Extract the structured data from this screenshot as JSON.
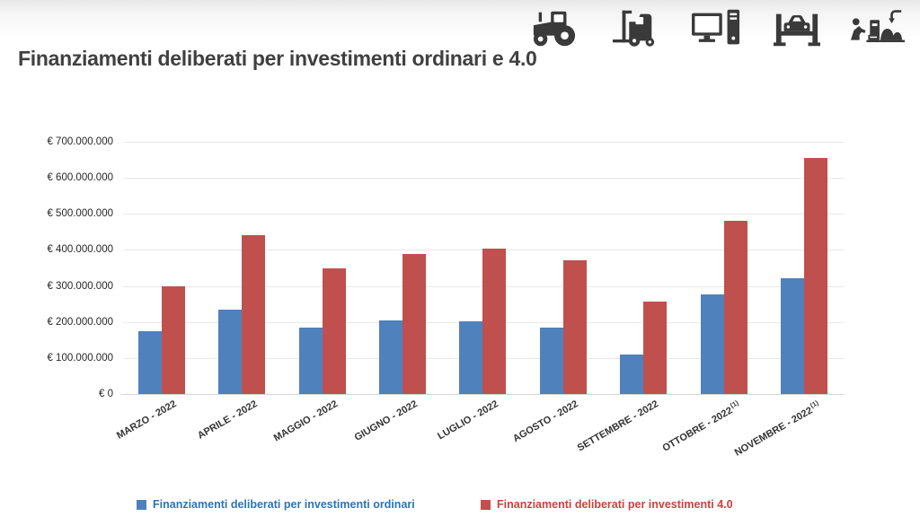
{
  "header_icons": [
    "tractor",
    "forklift",
    "desktop-computer",
    "car-lift",
    "workers-machinery"
  ],
  "colors": {
    "bar_ordinari": "#4F81BD",
    "bar_investimenti_40": "#C0504D",
    "legend_text_ordinari": "#2E74B5",
    "legend_text_investimenti_40": "#C9433C",
    "title_text": "#404040",
    "icon": "#3A3A3A",
    "gridline": "#E9E9E9"
  },
  "chart_data": {
    "type": "bar",
    "title": "Finanziamenti deliberati per investimenti ordinari e 4.0",
    "categories": [
      "MARZO - 2022",
      "APRILE - 2022",
      "MAGGIO - 2022",
      "GIUGNO - 2022",
      "LUGLIO - 2022",
      "AGOSTO - 2022",
      "SETTEMBRE - 2022",
      "OTTOBRE - 2022",
      "NOVEMBRE - 2022"
    ],
    "category_footnotes": [
      "",
      "",
      "",
      "",
      "",
      "",
      "",
      "(1)",
      "(1)"
    ],
    "series": [
      {
        "key": "ordinari",
        "name": "Finanziamenti deliberati per investimenti ordinari",
        "color": "#4F81BD",
        "legend_text_color": "#2E74B5",
        "values": [
          175000000,
          235000000,
          185000000,
          205000000,
          202000000,
          185000000,
          110000000,
          276000000,
          321000000
        ]
      },
      {
        "key": "investimenti-4-0",
        "name": "Finanziamenti deliberati per investimenti 4.0",
        "color": "#C0504D",
        "legend_text_color": "#C9433C",
        "values": [
          300000000,
          440000000,
          348000000,
          388000000,
          403000000,
          372000000,
          256000000,
          480000000,
          656000000
        ]
      }
    ],
    "values_unit": "EUR",
    "ylim": [
      0,
      700000000
    ],
    "y_tick_step": 100000000,
    "y_tick_labels": [
      "€ 0",
      "€ 100.000.000",
      "€ 200.000.000",
      "€ 300.000.000",
      "€ 400.000.000",
      "€ 500.000.000",
      "€ 600.000.000",
      "€ 700.000.000"
    ],
    "grid": "horizontal",
    "legend_position": "bottom"
  }
}
